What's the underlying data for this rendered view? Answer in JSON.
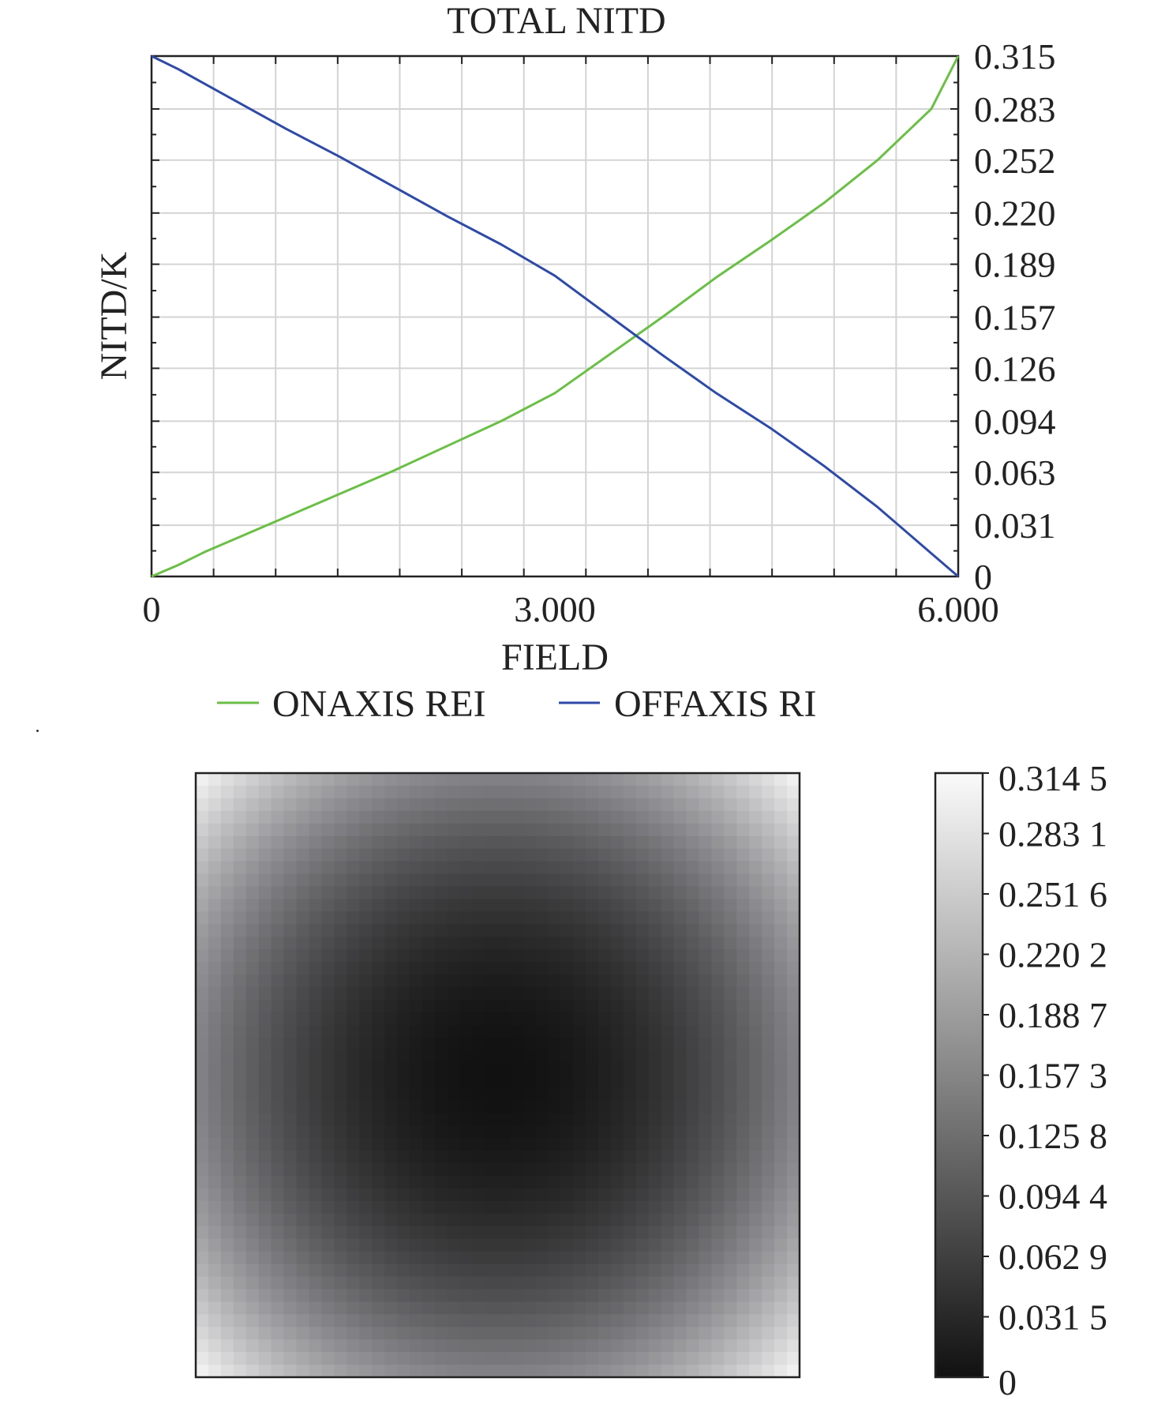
{
  "chart_data": [
    {
      "type": "line",
      "title": "TOTAL NITD",
      "xlabel": "FIELD",
      "ylabel": "NITD/K",
      "xlim": [
        0,
        6.0
      ],
      "ylim": [
        0,
        0.315
      ],
      "x_tick_labels": [
        {
          "value": 0,
          "label": "0"
        },
        {
          "value": 3.0,
          "label": "3.000"
        },
        {
          "value": 6.0,
          "label": "6.000"
        }
      ],
      "y_tick_labels": [
        "0",
        "0.031",
        "0.063",
        "0.094",
        "0.126",
        "0.157",
        "0.189",
        "0.220",
        "0.252",
        "0.283",
        "0.315"
      ],
      "y_tick_values": [
        0,
        0.031,
        0.063,
        0.094,
        0.126,
        0.157,
        0.189,
        0.22,
        0.252,
        0.283,
        0.315
      ],
      "grid": true,
      "legend_position": "bottom",
      "series": [
        {
          "name": "ONAXIS REI",
          "color": "#6abf45",
          "x": [
            0,
            0.2,
            0.4,
            0.6,
            1.0,
            1.4,
            1.8,
            2.2,
            2.6,
            3.0,
            3.4,
            3.8,
            4.2,
            4.6,
            5.0,
            5.4,
            5.8,
            6.0
          ],
          "y": [
            0,
            0.007,
            0.015,
            0.022,
            0.036,
            0.05,
            0.064,
            0.079,
            0.094,
            0.111,
            0.134,
            0.157,
            0.181,
            0.203,
            0.226,
            0.252,
            0.283,
            0.315
          ]
        },
        {
          "name": "OFFAXIS RI",
          "color": "#2e4aa8",
          "x": [
            0,
            0.2,
            0.4,
            0.6,
            1.0,
            1.4,
            1.8,
            2.2,
            2.6,
            3.0,
            3.4,
            3.8,
            4.2,
            4.6,
            5.0,
            5.4,
            5.8,
            6.0
          ],
          "y": [
            0.315,
            0.307,
            0.298,
            0.289,
            0.271,
            0.254,
            0.236,
            0.218,
            0.201,
            0.182,
            0.158,
            0.134,
            0.111,
            0.09,
            0.067,
            0.042,
            0.014,
            0
          ]
        }
      ]
    },
    {
      "type": "heatmap",
      "colormap": "grayscale",
      "colorbar_min": 0,
      "colorbar_max": 0.3145,
      "colorbar_tick_labels": [
        "0.314 5",
        "0.283 1",
        "0.251 6",
        "0.220 2",
        "0.188 7",
        "0.157 3",
        "0.125 8",
        "0.094 4",
        "0.062 9",
        "0.031 5",
        "0"
      ],
      "grid_size": 48,
      "max_value": 0.3145,
      "min_value": 0
    }
  ]
}
